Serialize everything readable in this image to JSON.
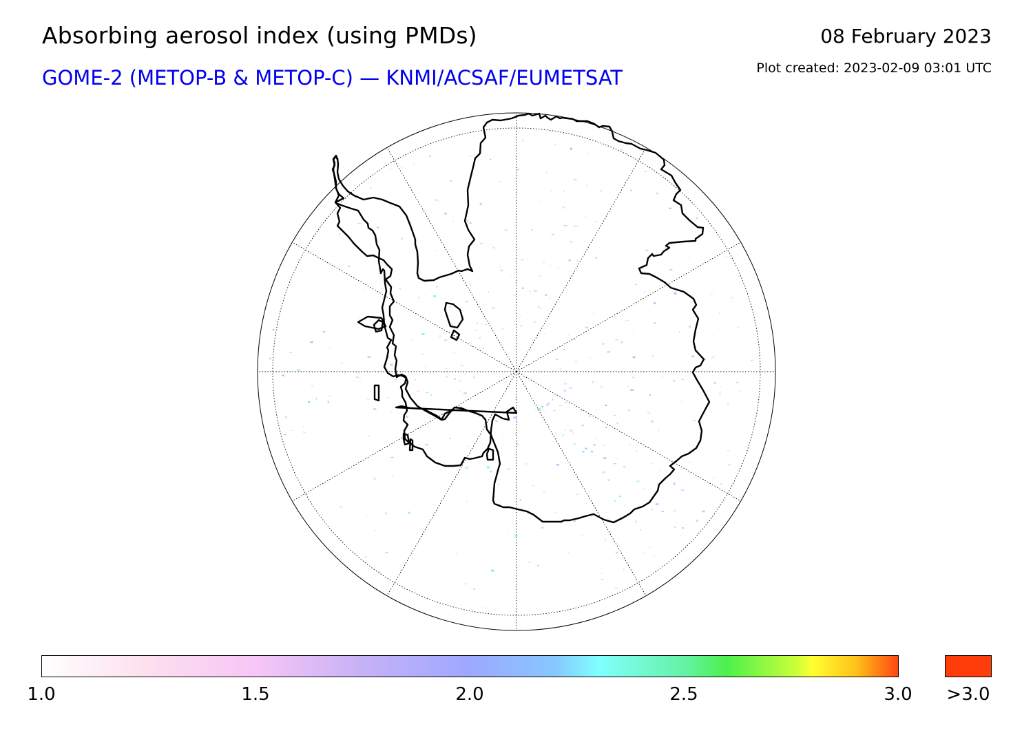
{
  "header": {
    "title": "Absorbing aerosol index (using PMDs)",
    "subtitle": "GOME-2 (METOP-B & METOP-C) — KNMI/ACSAF/EUMETSAT",
    "date": "08 February 2023",
    "created": "Plot created: 2023-02-09 03:01 UTC"
  },
  "map": {
    "projection": "south-polar-stereographic",
    "region": "Antarctica",
    "graticule": "dotted",
    "meridian_step_deg": 30,
    "coast_color": "#000000"
  },
  "colorbar": {
    "min": 1.0,
    "max": 3.0,
    "ticks": [
      "1.0",
      "1.5",
      "2.0",
      "2.5",
      "3.0"
    ],
    "over_label": ">3.0",
    "over_color": "#ff3d0a",
    "colors": [
      "#ffffff",
      "#f6c6f6",
      "#9da8ff",
      "#80ffff",
      "#4cf04c",
      "#ffff33",
      "#ff4713"
    ]
  }
}
